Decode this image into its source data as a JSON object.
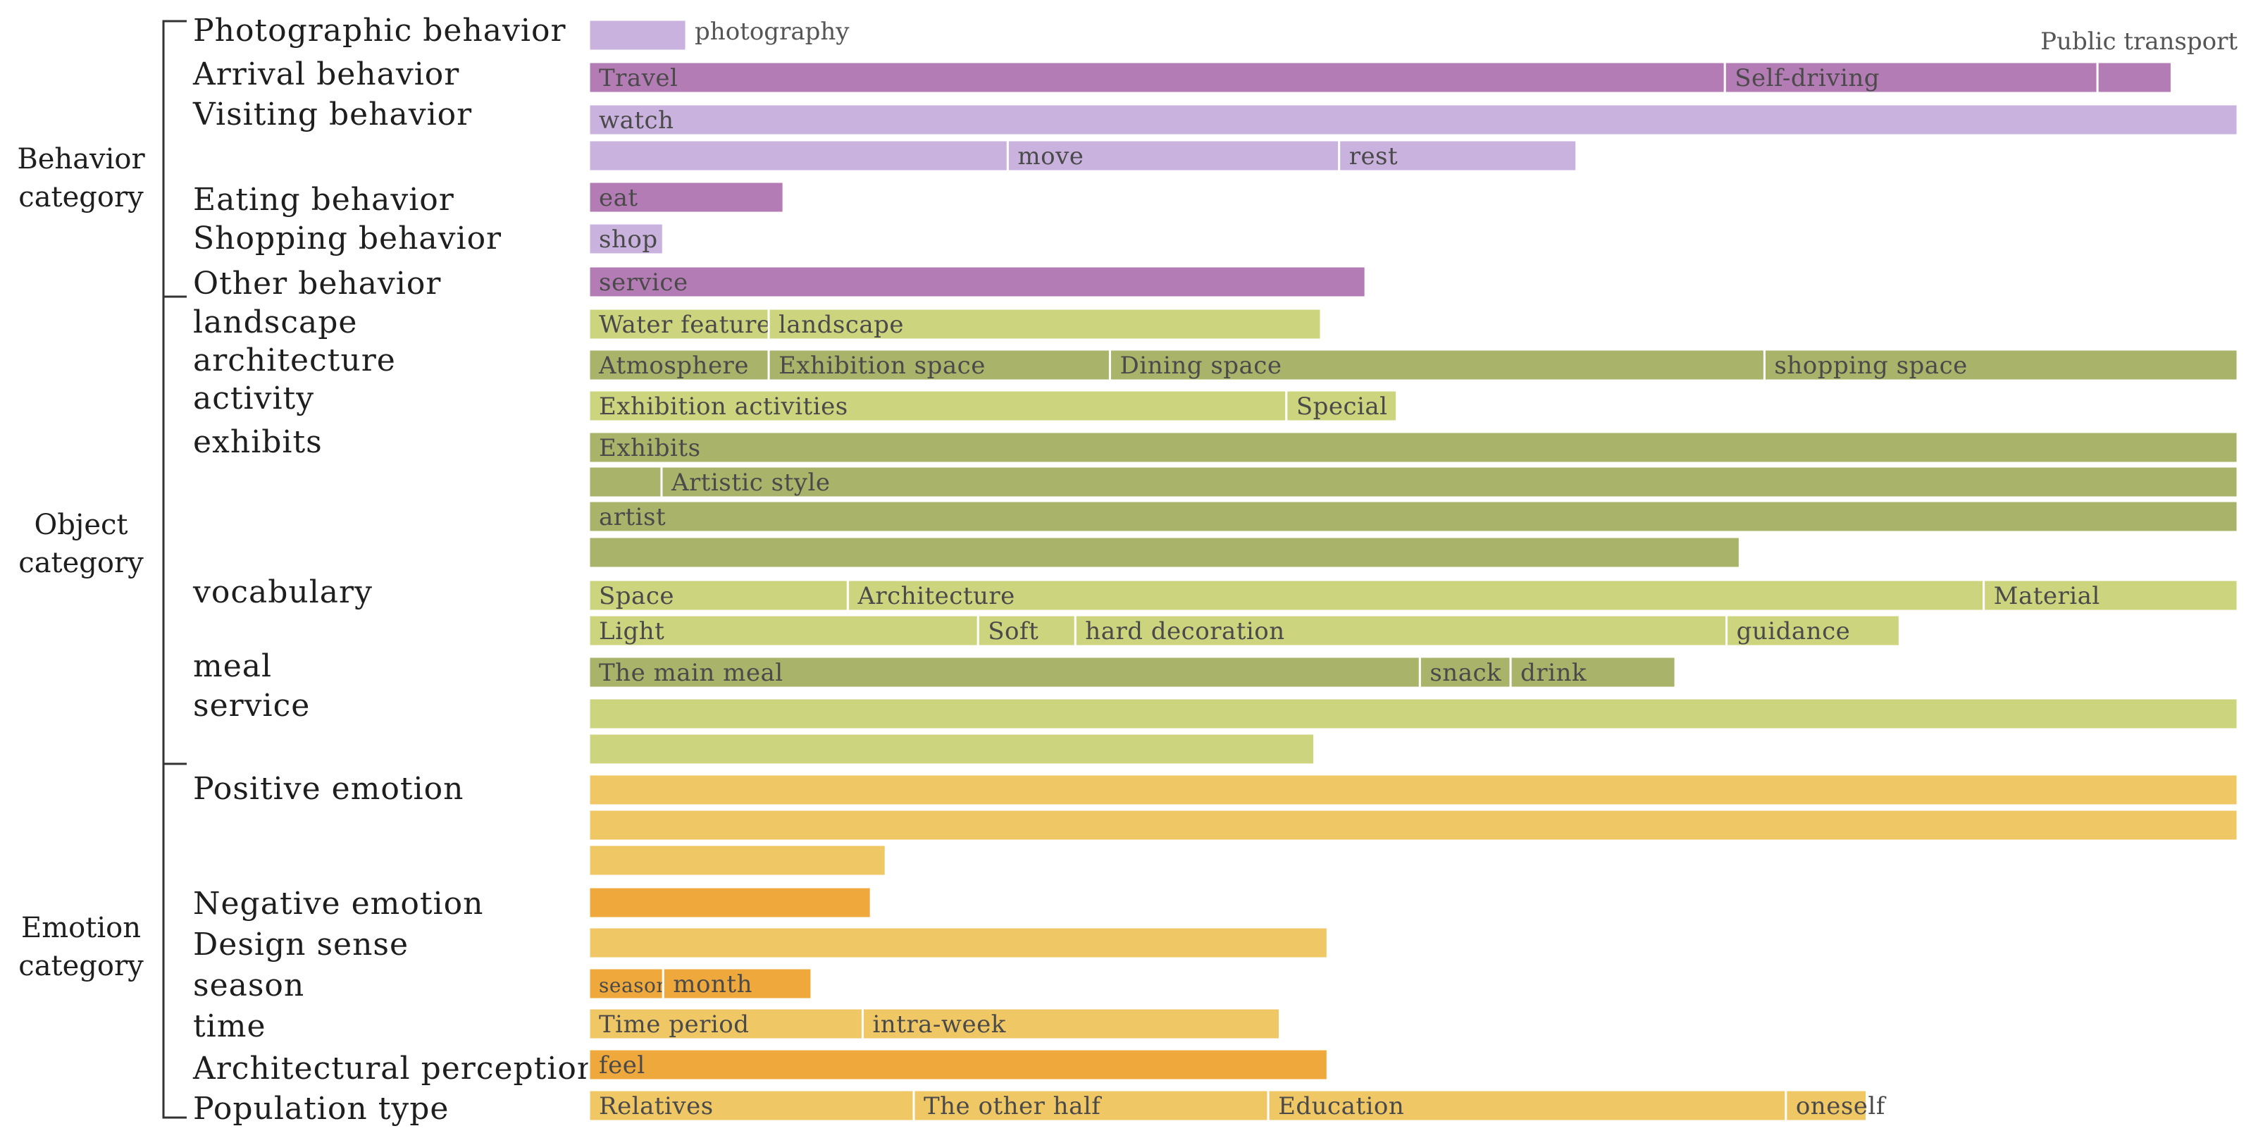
{
  "colors": {
    "behavior_light": "#c9b3de",
    "behavior_dark": "#b47cb4",
    "object_light": "#ccd47d",
    "object_dark": "#a9b36a",
    "emotion_light": "#efc765",
    "emotion_dark": "#eea83c",
    "text": "#1e1e1e",
    "segment_text": "#4a4a4a"
  },
  "chart_data": {
    "type": "bar",
    "orientation": "horizontal-stacked",
    "xlim": [
      0,
      1000
    ],
    "categories": [
      {
        "name": "Behavior\ncategory",
        "lines": [
          "Behavior",
          "category"
        ],
        "first_row": 0,
        "last_row": 5
      },
      {
        "name": "Object\ncategory",
        "lines": [
          "Object",
          "category"
        ],
        "first_row": 6,
        "last_row": 19
      },
      {
        "name": "Emotion\ncategory",
        "lines": [
          "Emotion",
          "category"
        ],
        "first_row": 20,
        "last_row": 29
      }
    ],
    "row_labels": [
      {
        "text": "Photographic behavior",
        "row": 0
      },
      {
        "text": "Arrival behavior",
        "row": 1
      },
      {
        "text": "Visiting behavior",
        "row": 2
      },
      {
        "text": "Eating behavior",
        "row": 4
      },
      {
        "text": "Shopping behavior",
        "row": 5
      },
      {
        "text": "Other behavior",
        "row": 6
      },
      {
        "text": "landscape",
        "row": 7
      },
      {
        "text": "architecture",
        "row": 8
      },
      {
        "text": "activity",
        "row": 9
      },
      {
        "text": "exhibits",
        "row": 10
      },
      {
        "text": "vocabulary",
        "row": 14
      },
      {
        "text": "meal",
        "row": 16
      },
      {
        "text": "service",
        "row": 17
      },
      {
        "text": "Positive emotion",
        "row": 19
      },
      {
        "text": "Negative emotion",
        "row": 22
      },
      {
        "text": "Design sense",
        "row": 23
      },
      {
        "text": "season",
        "row": 24
      },
      {
        "text": "time",
        "row": 25
      },
      {
        "text": "Architectural perception",
        "row": 26
      },
      {
        "text": "Population type",
        "row": 27
      }
    ],
    "rows": [
      {
        "shade": "behavior_light",
        "segments": [
          {
            "label": "",
            "value": 59
          }
        ],
        "outside_label": "photography"
      },
      {
        "shade": "behavior_dark",
        "segments": [
          {
            "label": "Travel",
            "value": 689
          },
          {
            "label": "Self-driving",
            "value": 226
          },
          {
            "label": "",
            "value": 45
          }
        ],
        "top_right_label": "Public transport"
      },
      {
        "shade": "behavior_light",
        "segments": [
          {
            "label": "watch",
            "value": 1000
          }
        ]
      },
      {
        "shade": "behavior_light",
        "segments": [
          {
            "label": "",
            "value": 254
          },
          {
            "label": "move",
            "value": 201
          },
          {
            "label": "rest",
            "value": 144
          }
        ]
      },
      {
        "shade": "behavior_dark",
        "segments": [
          {
            "label": "eat",
            "value": 118
          }
        ]
      },
      {
        "shade": "behavior_light",
        "segments": [
          {
            "label": "shop",
            "value": 45
          }
        ]
      },
      {
        "shade": "behavior_dark",
        "segments": [
          {
            "label": "service",
            "value": 471
          }
        ]
      },
      {
        "shade": "object_light",
        "segments": [
          {
            "label": "Water feature",
            "value": 109
          },
          {
            "label": "landscape",
            "value": 335
          }
        ]
      },
      {
        "shade": "object_dark",
        "segments": [
          {
            "label": "Atmosphere",
            "value": 109
          },
          {
            "label": "Exhibition space",
            "value": 207
          },
          {
            "label": "Dining space",
            "value": 397
          },
          {
            "label": "shopping space",
            "value": 287
          }
        ]
      },
      {
        "shade": "object_light",
        "segments": [
          {
            "label": "Exhibition activities",
            "value": 423
          },
          {
            "label": "Special",
            "value": 67
          }
        ]
      },
      {
        "shade": "object_dark",
        "segments": [
          {
            "label": "Exhibits",
            "value": 1000
          }
        ]
      },
      {
        "shade": "object_dark",
        "segments": [
          {
            "label": "",
            "value": 44
          },
          {
            "label": "Artistic style",
            "value": 956
          }
        ]
      },
      {
        "shade": "object_dark",
        "segments": [
          {
            "label": "artist",
            "value": 1000
          }
        ]
      },
      {
        "shade": "object_dark",
        "segments": [
          {
            "label": "",
            "value": 698
          }
        ]
      },
      {
        "shade": "object_light",
        "segments": [
          {
            "label": "Space",
            "value": 157
          },
          {
            "label": "Architecture",
            "value": 689
          },
          {
            "label": "Material",
            "value": 154
          }
        ]
      },
      {
        "shade": "object_light",
        "segments": [
          {
            "label": "Light",
            "value": 236
          },
          {
            "label": "Soft",
            "value": 59
          },
          {
            "label": "hard decoration",
            "value": 395
          },
          {
            "label": "guidance",
            "value": 105
          }
        ]
      },
      {
        "shade": "object_dark",
        "segments": [
          {
            "label": "The main meal",
            "value": 504
          },
          {
            "label": "snack",
            "value": 55
          },
          {
            "label": "drink",
            "value": 100
          }
        ]
      },
      {
        "shade": "object_light",
        "segments": [
          {
            "label": "",
            "value": 1000
          }
        ]
      },
      {
        "shade": "object_light",
        "segments": [
          {
            "label": "",
            "value": 440
          }
        ]
      },
      {
        "shade": "emotion_light",
        "segments": [
          {
            "label": "",
            "value": 1000
          }
        ]
      },
      {
        "shade": "emotion_light",
        "segments": [
          {
            "label": "",
            "value": 1000
          }
        ]
      },
      {
        "shade": "emotion_light",
        "segments": [
          {
            "label": "",
            "value": 180
          }
        ]
      },
      {
        "shade": "emotion_dark",
        "segments": [
          {
            "label": "",
            "value": 171
          }
        ]
      },
      {
        "shade": "emotion_light",
        "segments": [
          {
            "label": "",
            "value": 448
          }
        ]
      },
      {
        "shade": "emotion_dark",
        "segments": [
          {
            "label": "season",
            "value": 45,
            "small": true
          },
          {
            "label": "month",
            "value": 90
          }
        ]
      },
      {
        "shade": "emotion_light",
        "segments": [
          {
            "label": "Time period",
            "value": 166
          },
          {
            "label": "intra-week",
            "value": 253
          }
        ]
      },
      {
        "shade": "emotion_dark",
        "segments": [
          {
            "label": "feel",
            "value": 448
          }
        ]
      },
      {
        "shade": "emotion_light",
        "segments": [
          {
            "label": "Relatives",
            "value": 197
          },
          {
            "label": "The other half",
            "value": 215
          },
          {
            "label": "Education",
            "value": 314
          },
          {
            "label": "oneself",
            "value": 49
          }
        ]
      }
    ]
  }
}
